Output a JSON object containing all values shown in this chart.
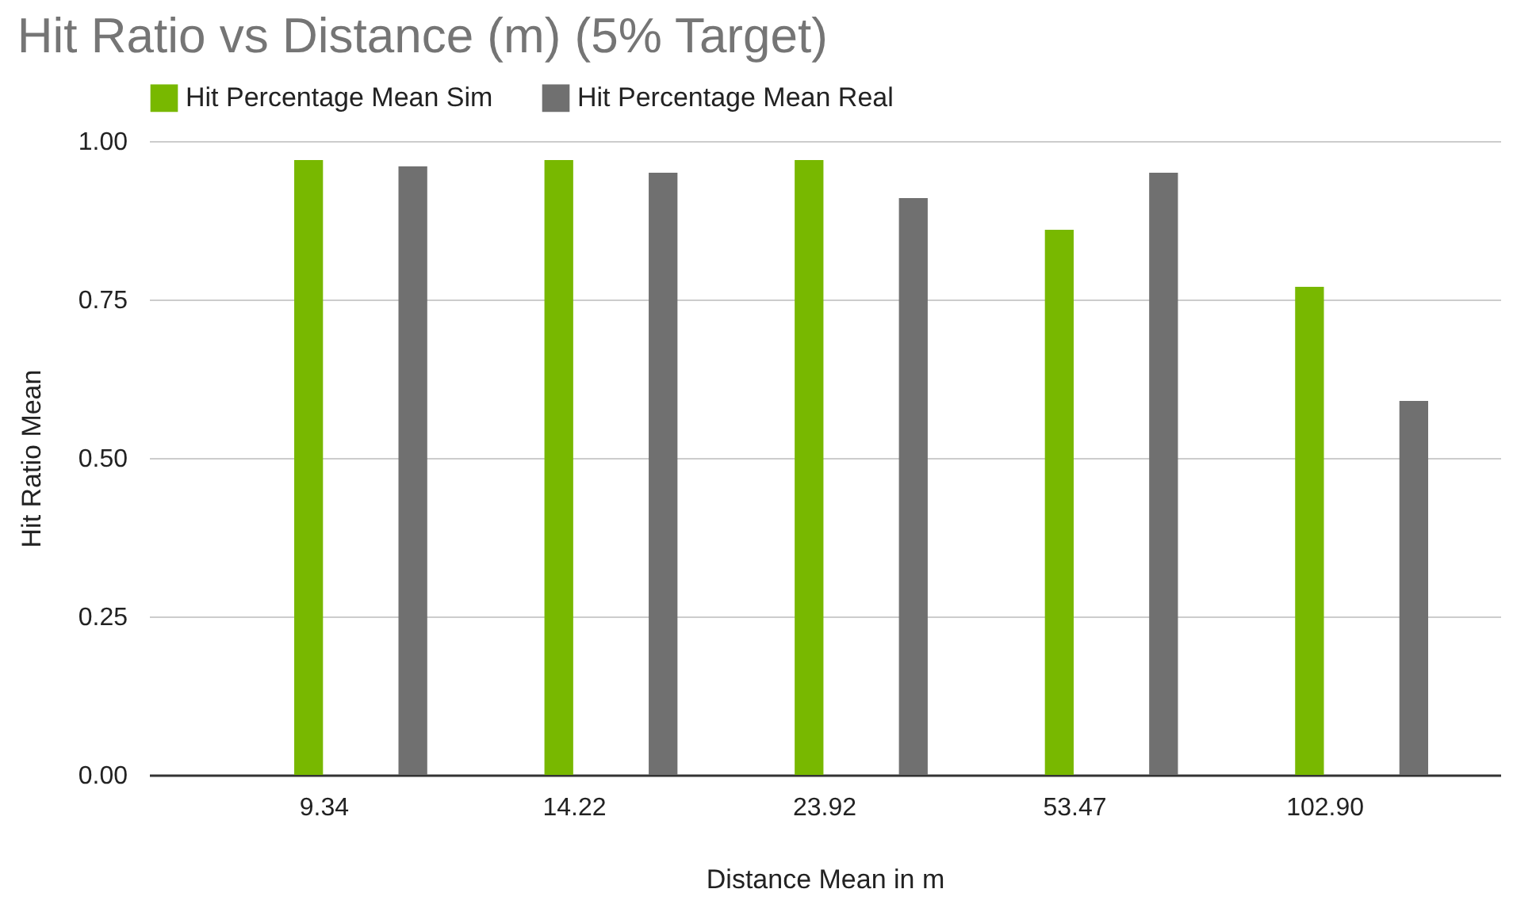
{
  "chart_data": {
    "type": "bar",
    "title": "Hit Ratio vs Distance (m) (5% Target)",
    "xlabel": "Distance Mean in m",
    "ylabel": "Hit Ratio Mean",
    "categories": [
      "9.34",
      "14.22",
      "23.92",
      "53.47",
      "102.90"
    ],
    "series": [
      {
        "name": "Hit Percentage Mean Sim",
        "color": "#78b800",
        "values": [
          0.97,
          0.97,
          0.97,
          0.86,
          0.77
        ]
      },
      {
        "name": "Hit Percentage Mean Real",
        "color": "#707070",
        "values": [
          0.96,
          0.95,
          0.91,
          0.95,
          0.59
        ]
      }
    ],
    "ylim": [
      0,
      1
    ],
    "yticks": [
      {
        "value": 0,
        "label": "0.00"
      },
      {
        "value": 0.25,
        "label": "0.25"
      },
      {
        "value": 0.5,
        "label": "0.50"
      },
      {
        "value": 0.75,
        "label": "0.75"
      },
      {
        "value": 1,
        "label": "1.00"
      }
    ],
    "grid": "y",
    "legend": "top"
  }
}
